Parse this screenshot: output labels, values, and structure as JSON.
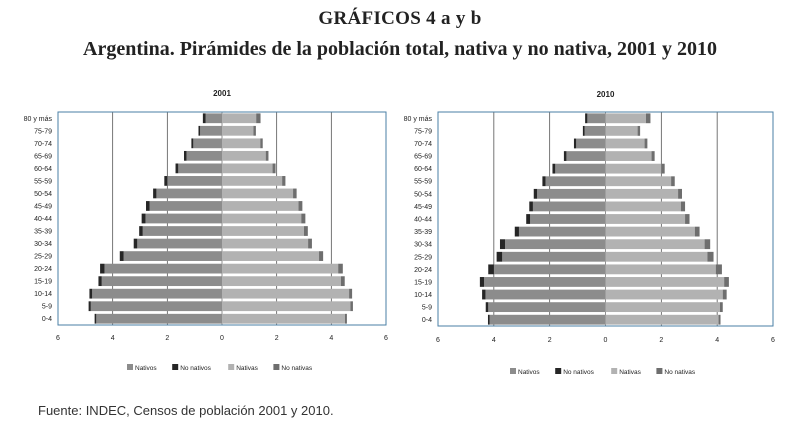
{
  "title": "GRÁFICOS 4 a y b",
  "subtitle": "Argentina. Pirámides de la población total, nativa y no nativa, 2001 y 2010",
  "source": "Fuente: INDEC, Censos de población 2001 y 2010.",
  "colors": {
    "nativos": "#8c8c8c",
    "no_nativos": "#262626",
    "nativas": "#b2b2b2",
    "no_nativas": "#6e6e6e"
  },
  "chart_data": [
    {
      "type": "bar",
      "orientation": "horizontal-pyramid",
      "title": "2001",
      "categories": [
        "0-4",
        "5-9",
        "10-14",
        "15-19",
        "20-24",
        "25-29",
        "30-34",
        "35-39",
        "40-44",
        "45-49",
        "50-54",
        "55-59",
        "60-64",
        "65-69",
        "70-74",
        "75-79",
        "80 y más"
      ],
      "xlim": [
        -6,
        6
      ],
      "xticks": [
        "6",
        "4",
        "2",
        "0",
        "2",
        "4",
        "6"
      ],
      "xtick_values": [
        -6,
        -4,
        -2,
        0,
        2,
        4,
        6
      ],
      "grid": true,
      "legend": "bottom",
      "series": [
        {
          "name": "Nativos",
          "side": "left",
          "values": [
            4.6,
            4.8,
            4.75,
            4.4,
            4.3,
            3.6,
            3.1,
            2.9,
            2.8,
            2.65,
            2.4,
            2.0,
            1.6,
            1.3,
            1.05,
            0.8,
            0.6
          ]
        },
        {
          "name": "No nativos",
          "side": "left",
          "values": [
            0.06,
            0.08,
            0.1,
            0.12,
            0.16,
            0.14,
            0.13,
            0.13,
            0.14,
            0.13,
            0.12,
            0.11,
            0.1,
            0.09,
            0.07,
            0.06,
            0.1
          ]
        },
        {
          "name": "Nativas",
          "side": "right",
          "values": [
            4.5,
            4.7,
            4.65,
            4.35,
            4.25,
            3.55,
            3.15,
            3.0,
            2.9,
            2.8,
            2.6,
            2.2,
            1.85,
            1.6,
            1.4,
            1.15,
            1.25
          ]
        },
        {
          "name": "No nativas",
          "side": "right",
          "values": [
            0.07,
            0.09,
            0.11,
            0.14,
            0.17,
            0.15,
            0.14,
            0.14,
            0.15,
            0.14,
            0.13,
            0.12,
            0.11,
            0.1,
            0.09,
            0.09,
            0.16
          ]
        }
      ]
    },
    {
      "type": "bar",
      "orientation": "horizontal-pyramid",
      "title": "2010",
      "categories": [
        "0-4",
        "5-9",
        "10-14",
        "15-19",
        "20-24",
        "25-29",
        "30-34",
        "35-39",
        "40-44",
        "45-49",
        "50-54",
        "55-59",
        "60-64",
        "65-69",
        "70-74",
        "75-79",
        "80 y más"
      ],
      "xlim": [
        -6,
        6
      ],
      "xticks": [
        "6",
        "4",
        "2",
        "0",
        "2",
        "4",
        "6"
      ],
      "xtick_values": [
        -6,
        -4,
        -2,
        0,
        2,
        4,
        6
      ],
      "grid": true,
      "legend": "bottom",
      "series": [
        {
          "name": "Nativos",
          "side": "left",
          "values": [
            4.15,
            4.2,
            4.3,
            4.35,
            4.0,
            3.7,
            3.6,
            3.1,
            2.7,
            2.6,
            2.45,
            2.15,
            1.8,
            1.4,
            1.05,
            0.75,
            0.65
          ]
        },
        {
          "name": "No nativos",
          "side": "left",
          "values": [
            0.06,
            0.09,
            0.12,
            0.15,
            0.2,
            0.2,
            0.18,
            0.15,
            0.14,
            0.13,
            0.12,
            0.11,
            0.1,
            0.09,
            0.08,
            0.06,
            0.08
          ]
        },
        {
          "name": "Nativas",
          "side": "right",
          "values": [
            4.05,
            4.1,
            4.2,
            4.25,
            3.95,
            3.65,
            3.55,
            3.2,
            2.85,
            2.7,
            2.6,
            2.35,
            2.0,
            1.65,
            1.4,
            1.15,
            1.45
          ]
        },
        {
          "name": "No nativas",
          "side": "right",
          "values": [
            0.07,
            0.1,
            0.14,
            0.17,
            0.22,
            0.22,
            0.2,
            0.17,
            0.16,
            0.15,
            0.14,
            0.13,
            0.12,
            0.11,
            0.1,
            0.09,
            0.16
          ]
        }
      ]
    }
  ]
}
